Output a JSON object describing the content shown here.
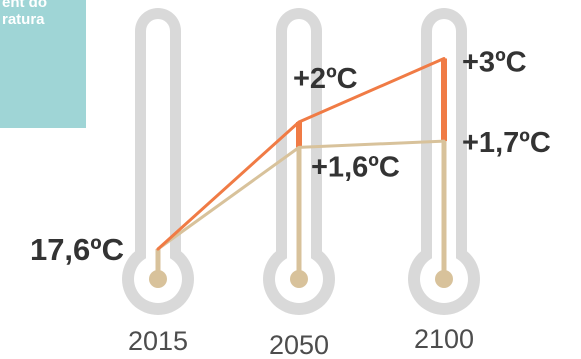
{
  "corner_badge": {
    "text": "ent do\nratura",
    "color": "#9fd5d6"
  },
  "colors": {
    "thermometer_outer": "#d9d9d9",
    "thermometer_inner": "#ffffff",
    "mercury": "#d8c29b",
    "high_scenario": "#f07b45",
    "low_scenario": "#d8c29b",
    "label_text": "#333333",
    "year_text": "#4d4d4d"
  },
  "chart_data": {
    "type": "line",
    "title": "",
    "xlabel": "",
    "ylabel": "",
    "categories": [
      "2015",
      "2050",
      "2100"
    ],
    "baseline_label": "17,6ºC",
    "baseline_value": 17.6,
    "series": [
      {
        "key": "high",
        "values": [
          17.6,
          19.6,
          20.6
        ],
        "labels": [
          "",
          "+2ºC",
          "+3ºC"
        ],
        "color": "#f07b45"
      },
      {
        "key": "low",
        "values": [
          17.6,
          19.2,
          19.3
        ],
        "labels": [
          "",
          "+1,6ºC",
          "+1,7ºC"
        ],
        "color": "#d8c29b"
      }
    ]
  }
}
